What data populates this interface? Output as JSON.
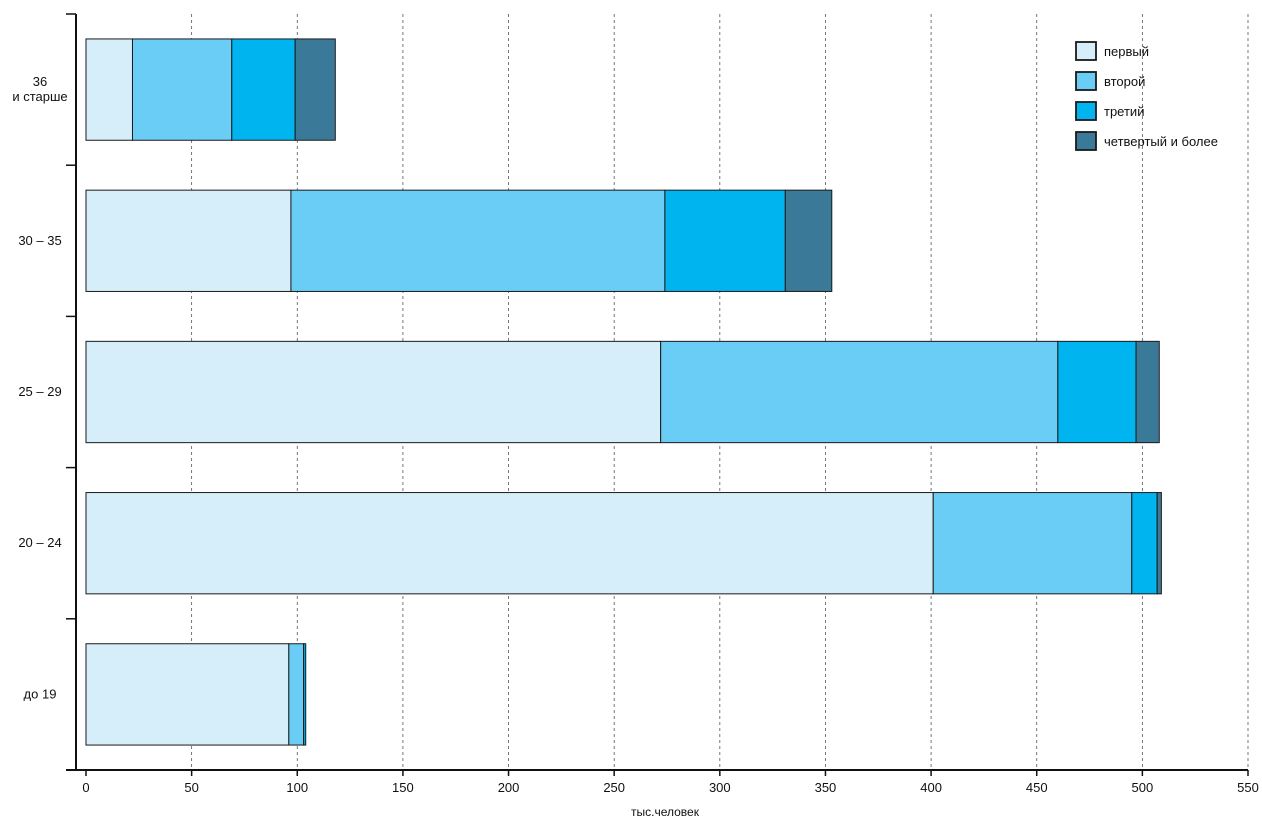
{
  "chart_data": {
    "type": "bar",
    "orientation": "horizontal",
    "stacked": true,
    "title": "",
    "xlabel": "тыс.человек",
    "ylabel": "",
    "xlim": [
      0,
      550
    ],
    "xticks": [
      0,
      50,
      100,
      150,
      200,
      250,
      300,
      350,
      400,
      450,
      500,
      550
    ],
    "grid": "vertical dashed",
    "legend_position": "top-right",
    "categories": [
      {
        "id": "36plus",
        "label_lines": [
          "36",
          "и старше"
        ]
      },
      {
        "id": "30-35",
        "label_lines": [
          "30 – 35"
        ]
      },
      {
        "id": "25-29",
        "label_lines": [
          "25 – 29"
        ]
      },
      {
        "id": "20-24",
        "label_lines": [
          "20 – 24"
        ]
      },
      {
        "id": "to19",
        "label_lines": [
          "до 19"
        ]
      }
    ],
    "series": [
      {
        "name": "первый",
        "color": "#d6eefa",
        "values": [
          22,
          97,
          272,
          401,
          96
        ]
      },
      {
        "name": "второй",
        "color": "#6acdf5",
        "values": [
          47,
          177,
          188,
          94,
          7
        ]
      },
      {
        "name": "третий",
        "color": "#00b4f0",
        "values": [
          30,
          57,
          37,
          12,
          1
        ]
      },
      {
        "name": "четвертый и более",
        "color": "#3a7a98",
        "values": [
          19,
          22,
          11,
          2,
          0
        ]
      }
    ]
  }
}
